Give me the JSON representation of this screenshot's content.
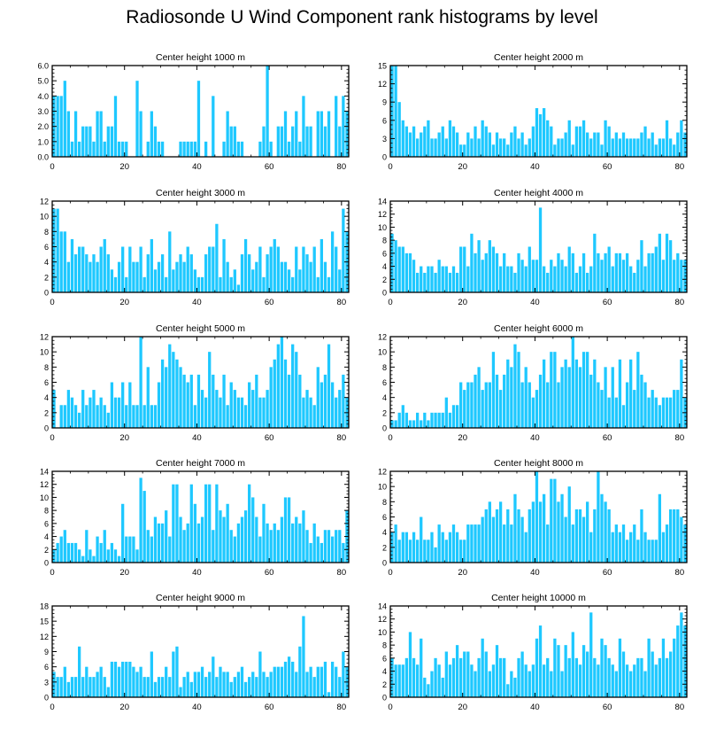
{
  "title": "Radiosonde U Wind Component rank histograms by level",
  "colors": {
    "bar": "#1ec8ff",
    "axis": "#000000"
  },
  "chart_data": [
    {
      "type": "bar",
      "title": "Center height 1000 m",
      "xlim": [
        0,
        82
      ],
      "ylim": [
        0,
        6
      ],
      "yticks": [
        0,
        1,
        2,
        3,
        4,
        5,
        6
      ],
      "ytick_labels": [
        "0.0",
        "1.0",
        "2.0",
        "3.0",
        "4.0",
        "5.0",
        "6.0"
      ],
      "xticks": [
        0,
        20,
        40,
        60,
        80
      ],
      "xtick_labels": [
        "0",
        "20",
        "40",
        "60",
        "80"
      ],
      "values": [
        4,
        4,
        4,
        5,
        3,
        1,
        3,
        1,
        2,
        2,
        2,
        1,
        3,
        3,
        1,
        2,
        2,
        4,
        1,
        1,
        1,
        0,
        0,
        5,
        3,
        0,
        1,
        3,
        2,
        1,
        1,
        0,
        0,
        0,
        0,
        1,
        1,
        1,
        1,
        1,
        5,
        0,
        1,
        0,
        4,
        0,
        0,
        1,
        3,
        2,
        2,
        1,
        1,
        0,
        0,
        0,
        0,
        1,
        2,
        6,
        1,
        0,
        2,
        2,
        3,
        1,
        2,
        3,
        1,
        4,
        2,
        2,
        0,
        3,
        3,
        2,
        3,
        0,
        4,
        2,
        4,
        3
      ]
    },
    {
      "type": "bar",
      "title": "Center height 2000 m",
      "xlim": [
        0,
        82
      ],
      "ylim": [
        0,
        15
      ],
      "yticks": [
        0,
        3,
        6,
        9,
        12,
        15
      ],
      "ytick_labels": [
        "0",
        "3",
        "6",
        "9",
        "12",
        "15"
      ],
      "xticks": [
        0,
        20,
        40,
        60,
        80
      ],
      "xtick_labels": [
        "0",
        "20",
        "40",
        "60",
        "80"
      ],
      "values": [
        15,
        15,
        9,
        6,
        5,
        4,
        5,
        3,
        4,
        5,
        6,
        3,
        3,
        4,
        5,
        3,
        6,
        5,
        4,
        2,
        2,
        4,
        3,
        5,
        3,
        6,
        5,
        4,
        2,
        4,
        3,
        3,
        2,
        4,
        5,
        3,
        4,
        2,
        3,
        5,
        8,
        7,
        8,
        6,
        5,
        2,
        3,
        3,
        4,
        6,
        2,
        5,
        5,
        6,
        4,
        3,
        4,
        4,
        2,
        6,
        5,
        3,
        4,
        3,
        4,
        3,
        3,
        3,
        3,
        4,
        5,
        3,
        4,
        2,
        3,
        3,
        6,
        3,
        2,
        4,
        6,
        4
      ]
    },
    {
      "type": "bar",
      "title": "Center height 3000 m",
      "xlim": [
        0,
        82
      ],
      "ylim": [
        0,
        12
      ],
      "yticks": [
        0,
        2,
        4,
        6,
        8,
        10,
        12
      ],
      "ytick_labels": [
        "0",
        "2",
        "4",
        "6",
        "8",
        "10",
        "12"
      ],
      "xticks": [
        0,
        20,
        40,
        60,
        80
      ],
      "xtick_labels": [
        "0",
        "20",
        "40",
        "60",
        "80"
      ],
      "values": [
        11,
        11,
        8,
        8,
        4,
        7,
        5,
        6,
        6,
        5,
        4,
        5,
        4,
        6,
        7,
        5,
        3,
        2,
        4,
        6,
        2,
        6,
        4,
        4,
        6,
        2,
        5,
        7,
        3,
        4,
        5,
        2,
        8,
        3,
        4,
        5,
        4,
        6,
        5,
        3,
        2,
        2,
        5,
        6,
        6,
        9,
        2,
        7,
        4,
        2,
        3,
        1,
        5,
        7,
        5,
        3,
        4,
        6,
        2,
        5,
        6,
        7,
        6,
        4,
        4,
        3,
        2,
        6,
        3,
        6,
        5,
        4,
        6,
        2,
        7,
        4,
        2,
        8,
        6,
        3,
        11,
        8
      ]
    },
    {
      "type": "bar",
      "title": "Center height 4000 m",
      "xlim": [
        0,
        82
      ],
      "ylim": [
        0,
        14
      ],
      "yticks": [
        0,
        2,
        4,
        6,
        8,
        10,
        12,
        14
      ],
      "ytick_labels": [
        "0",
        "2",
        "4",
        "6",
        "8",
        "10",
        "12",
        "14"
      ],
      "xticks": [
        0,
        20,
        40,
        60,
        80
      ],
      "xtick_labels": [
        "0",
        "20",
        "40",
        "60",
        "80"
      ],
      "values": [
        9,
        8,
        7,
        7,
        6,
        6,
        5,
        3,
        4,
        3,
        4,
        4,
        3,
        5,
        4,
        4,
        3,
        4,
        3,
        7,
        7,
        4,
        9,
        6,
        8,
        5,
        6,
        8,
        7,
        6,
        4,
        6,
        4,
        4,
        3,
        6,
        5,
        4,
        7,
        5,
        5,
        13,
        4,
        3,
        5,
        4,
        6,
        5,
        4,
        7,
        6,
        3,
        4,
        6,
        3,
        4,
        9,
        6,
        5,
        6,
        7,
        4,
        6,
        6,
        5,
        6,
        4,
        3,
        5,
        8,
        4,
        6,
        6,
        7,
        9,
        5,
        9,
        8,
        5,
        6,
        5,
        5
      ]
    },
    {
      "type": "bar",
      "title": "Center height 5000 m",
      "xlim": [
        0,
        82
      ],
      "ylim": [
        0,
        12
      ],
      "yticks": [
        0,
        2,
        4,
        6,
        8,
        10,
        12
      ],
      "ytick_labels": [
        "0",
        "2",
        "4",
        "6",
        "8",
        "10",
        "12"
      ],
      "xticks": [
        0,
        20,
        40,
        60,
        80
      ],
      "xtick_labels": [
        "0",
        "20",
        "40",
        "60",
        "80"
      ],
      "values": [
        5,
        0,
        3,
        3,
        5,
        4,
        3,
        2,
        5,
        3,
        4,
        5,
        3,
        4,
        3,
        2,
        6,
        4,
        4,
        6,
        3,
        6,
        3,
        3,
        12,
        3,
        8,
        3,
        3,
        6,
        9,
        8,
        11,
        10,
        9,
        8,
        7,
        6,
        7,
        3,
        7,
        5,
        4,
        10,
        7,
        5,
        4,
        7,
        3,
        6,
        5,
        4,
        4,
        3,
        6,
        5,
        7,
        4,
        4,
        5,
        8,
        9,
        11,
        12,
        9,
        7,
        11,
        10,
        7,
        4,
        5,
        4,
        3,
        8,
        6,
        7,
        11,
        6,
        4,
        5,
        7,
        4
      ]
    },
    {
      "type": "bar",
      "title": "Center height 6000 m",
      "xlim": [
        0,
        82
      ],
      "ylim": [
        0,
        12
      ],
      "yticks": [
        0,
        2,
        4,
        6,
        8,
        10,
        12
      ],
      "ytick_labels": [
        "0",
        "2",
        "4",
        "6",
        "8",
        "10",
        "12"
      ],
      "xticks": [
        0,
        20,
        40,
        60,
        80
      ],
      "xtick_labels": [
        "0",
        "20",
        "40",
        "60",
        "80"
      ],
      "values": [
        1,
        1,
        2,
        3,
        2,
        1,
        1,
        2,
        1,
        2,
        1,
        2,
        2,
        2,
        2,
        4,
        2,
        3,
        3,
        6,
        5,
        6,
        6,
        7,
        8,
        5,
        6,
        6,
        10,
        7,
        5,
        7,
        9,
        8,
        11,
        10,
        6,
        8,
        6,
        4,
        5,
        7,
        9,
        6,
        10,
        10,
        6,
        8,
        9,
        8,
        12,
        9,
        8,
        10,
        10,
        7,
        9,
        6,
        5,
        8,
        4,
        8,
        4,
        9,
        3,
        6,
        9,
        5,
        10,
        7,
        6,
        4,
        5,
        4,
        3,
        4,
        4,
        4,
        5,
        5,
        9,
        4
      ]
    },
    {
      "type": "bar",
      "title": "Center height 7000 m",
      "xlim": [
        0,
        82
      ],
      "ylim": [
        0,
        14
      ],
      "yticks": [
        0,
        2,
        4,
        6,
        8,
        10,
        12,
        14
      ],
      "ytick_labels": [
        "0",
        "2",
        "4",
        "6",
        "8",
        "10",
        "12",
        "14"
      ],
      "xticks": [
        0,
        20,
        40,
        60,
        80
      ],
      "xtick_labels": [
        "0",
        "20",
        "40",
        "60",
        "80"
      ],
      "values": [
        2,
        3,
        4,
        5,
        3,
        3,
        3,
        2,
        1,
        5,
        2,
        1,
        4,
        3,
        5,
        2,
        3,
        2,
        1,
        9,
        4,
        4,
        4,
        2,
        13,
        11,
        5,
        4,
        7,
        6,
        6,
        8,
        4,
        12,
        12,
        7,
        5,
        6,
        12,
        9,
        6,
        7,
        12,
        12,
        5,
        12,
        8,
        7,
        9,
        5,
        4,
        6,
        7,
        8,
        12,
        10,
        7,
        4,
        9,
        6,
        5,
        6,
        5,
        7,
        10,
        10,
        6,
        7,
        6,
        8,
        5,
        3,
        6,
        4,
        3,
        5,
        5,
        4,
        5,
        5,
        3,
        8
      ]
    },
    {
      "type": "bar",
      "title": "Center height 8000 m",
      "xlim": [
        0,
        82
      ],
      "ylim": [
        0,
        12
      ],
      "yticks": [
        0,
        2,
        4,
        6,
        8,
        10,
        12
      ],
      "ytick_labels": [
        "0",
        "2",
        "4",
        "6",
        "8",
        "10",
        "12"
      ],
      "xticks": [
        0,
        20,
        40,
        60,
        80
      ],
      "xtick_labels": [
        "0",
        "20",
        "40",
        "60",
        "80"
      ],
      "values": [
        4,
        5,
        3,
        4,
        4,
        3,
        4,
        3,
        6,
        3,
        3,
        4,
        2,
        5,
        4,
        3,
        4,
        5,
        4,
        3,
        3,
        5,
        5,
        5,
        5,
        6,
        7,
        8,
        6,
        7,
        8,
        5,
        7,
        5,
        9,
        7,
        6,
        4,
        7,
        8,
        12,
        8,
        9,
        5,
        11,
        11,
        8,
        9,
        6,
        10,
        5,
        7,
        7,
        6,
        8,
        4,
        7,
        12,
        9,
        8,
        7,
        4,
        5,
        4,
        5,
        3,
        4,
        5,
        3,
        7,
        4,
        3,
        3,
        3,
        9,
        4,
        5,
        7,
        7,
        7,
        6,
        5
      ]
    },
    {
      "type": "bar",
      "title": "Center height 9000 m",
      "xlim": [
        0,
        82
      ],
      "ylim": [
        0,
        18
      ],
      "yticks": [
        0,
        3,
        6,
        9,
        12,
        15,
        18
      ],
      "ytick_labels": [
        "0",
        "3",
        "6",
        "9",
        "12",
        "15",
        "18"
      ],
      "xticks": [
        0,
        20,
        40,
        60,
        80
      ],
      "xtick_labels": [
        "0",
        "20",
        "40",
        "60",
        "80"
      ],
      "values": [
        5,
        4,
        4,
        6,
        3,
        4,
        4,
        10,
        4,
        6,
        4,
        4,
        5,
        6,
        4,
        2,
        7,
        7,
        6,
        7,
        7,
        7,
        6,
        5,
        6,
        4,
        4,
        9,
        3,
        4,
        4,
        6,
        4,
        9,
        10,
        2,
        4,
        5,
        3,
        5,
        5,
        6,
        4,
        5,
        8,
        4,
        6,
        5,
        5,
        3,
        4,
        5,
        6,
        3,
        4,
        5,
        4,
        9,
        5,
        4,
        5,
        6,
        6,
        6,
        7,
        8,
        7,
        5,
        10,
        16,
        5,
        6,
        4,
        6,
        6,
        7,
        1,
        7,
        6,
        4,
        9,
        6
      ]
    },
    {
      "type": "bar",
      "title": "Center height 10000 m",
      "xlim": [
        0,
        82
      ],
      "ylim": [
        0,
        14
      ],
      "yticks": [
        0,
        2,
        4,
        6,
        8,
        10,
        12,
        14
      ],
      "ytick_labels": [
        "0",
        "2",
        "4",
        "6",
        "8",
        "10",
        "12",
        "14"
      ],
      "xticks": [
        0,
        20,
        40,
        60,
        80
      ],
      "xtick_labels": [
        "0",
        "20",
        "40",
        "60",
        "80"
      ],
      "values": [
        6,
        5,
        5,
        5,
        6,
        10,
        6,
        5,
        9,
        3,
        2,
        4,
        6,
        5,
        3,
        7,
        5,
        6,
        8,
        6,
        7,
        7,
        5,
        4,
        6,
        9,
        7,
        4,
        5,
        8,
        6,
        6,
        2,
        4,
        3,
        6,
        7,
        5,
        4,
        5,
        9,
        11,
        5,
        6,
        4,
        9,
        8,
        4,
        8,
        6,
        10,
        6,
        5,
        8,
        7,
        13,
        6,
        5,
        9,
        8,
        6,
        5,
        4,
        9,
        7,
        5,
        4,
        5,
        6,
        6,
        4,
        9,
        7,
        5,
        6,
        9,
        6,
        7,
        9,
        11,
        13,
        11
      ]
    }
  ]
}
